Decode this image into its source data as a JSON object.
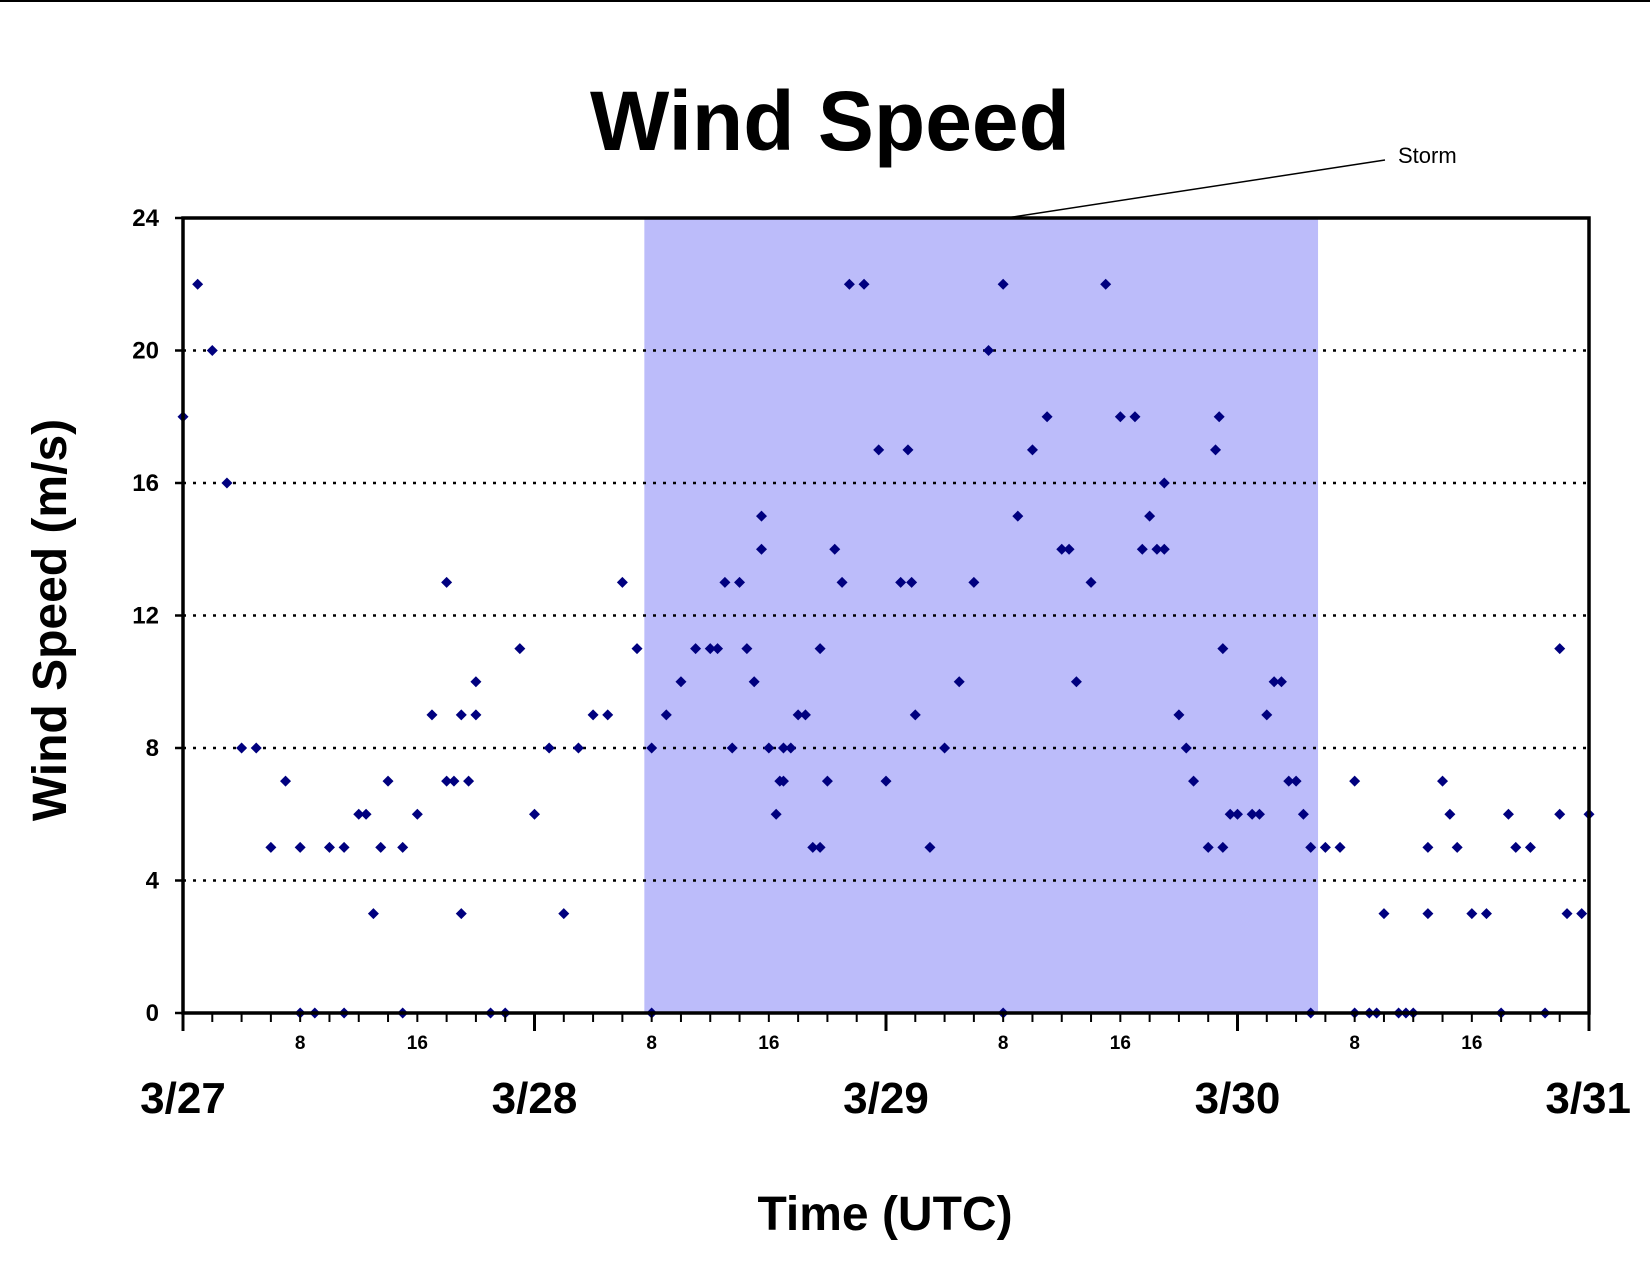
{
  "chart_data": {
    "type": "scatter",
    "title": "Wind Speed",
    "xlabel": "Time (UTC)",
    "ylabel": "Wind Speed (m/s)",
    "xlim": [
      "3/27 00:00",
      "3/31 00:00"
    ],
    "ylim": [
      0,
      24
    ],
    "y_ticks": [
      0,
      4,
      8,
      12,
      16,
      20,
      24
    ],
    "x_day_ticks": [
      "3/27",
      "3/28",
      "3/29",
      "3/30",
      "3/31"
    ],
    "x_hour_ticks": [
      "8",
      "16"
    ],
    "grid": "horizontal dotted",
    "colors": {
      "points": "#00007f",
      "storm_band": "#bcbcfa",
      "grid": "#000000"
    },
    "annotation": {
      "label": "Storm",
      "start": "3/28 07:30",
      "end": "3/30 05:30"
    },
    "series": [
      {
        "points": [
          [
            "3/27 00:00",
            18
          ],
          [
            "3/27 01:00",
            22
          ],
          [
            "3/27 02:00",
            20
          ],
          [
            "3/27 03:00",
            16
          ],
          [
            "3/27 04:00",
            8
          ],
          [
            "3/27 05:00",
            8
          ],
          [
            "3/27 06:00",
            5
          ],
          [
            "3/27 07:00",
            7
          ],
          [
            "3/27 08:00",
            5
          ],
          [
            "3/27 08:00",
            0
          ],
          [
            "3/27 09:00",
            0
          ],
          [
            "3/27 10:00",
            5
          ],
          [
            "3/27 11:00",
            5
          ],
          [
            "3/27 11:00",
            0
          ],
          [
            "3/27 12:00",
            6
          ],
          [
            "3/27 12:30",
            6
          ],
          [
            "3/27 13:00",
            3
          ],
          [
            "3/27 13:30",
            5
          ],
          [
            "3/27 14:00",
            7
          ],
          [
            "3/27 15:00",
            5
          ],
          [
            "3/27 15:00",
            0
          ],
          [
            "3/27 16:00",
            6
          ],
          [
            "3/27 17:00",
            9
          ],
          [
            "3/27 18:00",
            13
          ],
          [
            "3/27 18:00",
            7
          ],
          [
            "3/27 18:30",
            7
          ],
          [
            "3/27 19:00",
            9
          ],
          [
            "3/27 19:00",
            3
          ],
          [
            "3/27 19:30",
            7
          ],
          [
            "3/27 20:00",
            10
          ],
          [
            "3/27 20:00",
            9
          ],
          [
            "3/27 21:00",
            0
          ],
          [
            "3/27 22:00",
            0
          ],
          [
            "3/27 23:00",
            11
          ],
          [
            "3/28 00:00",
            6
          ],
          [
            "3/28 01:00",
            8
          ],
          [
            "3/28 02:00",
            3
          ],
          [
            "3/28 03:00",
            8
          ],
          [
            "3/28 04:00",
            9
          ],
          [
            "3/28 05:00",
            9
          ],
          [
            "3/28 06:00",
            13
          ],
          [
            "3/28 07:00",
            11
          ],
          [
            "3/28 08:00",
            8
          ],
          [
            "3/28 08:00",
            0
          ],
          [
            "3/28 09:00",
            9
          ],
          [
            "3/28 10:00",
            10
          ],
          [
            "3/28 11:00",
            11
          ],
          [
            "3/28 12:00",
            11
          ],
          [
            "3/28 12:30",
            11
          ],
          [
            "3/28 13:00",
            13
          ],
          [
            "3/28 13:30",
            8
          ],
          [
            "3/28 14:00",
            13
          ],
          [
            "3/28 14:30",
            11
          ],
          [
            "3/28 15:00",
            10
          ],
          [
            "3/28 15:30",
            15
          ],
          [
            "3/28 15:30",
            14
          ],
          [
            "3/28 16:00",
            8
          ],
          [
            "3/28 16:30",
            6
          ],
          [
            "3/28 16:45",
            7
          ],
          [
            "3/28 17:00",
            7
          ],
          [
            "3/28 17:00",
            8
          ],
          [
            "3/28 17:30",
            8
          ],
          [
            "3/28 18:00",
            9
          ],
          [
            "3/28 18:30",
            9
          ],
          [
            "3/28 19:00",
            5
          ],
          [
            "3/28 19:30",
            5
          ],
          [
            "3/28 19:30",
            11
          ],
          [
            "3/28 20:00",
            7
          ],
          [
            "3/28 20:30",
            14
          ],
          [
            "3/28 21:00",
            13
          ],
          [
            "3/28 21:30",
            22
          ],
          [
            "3/28 22:30",
            22
          ],
          [
            "3/28 23:30",
            17
          ],
          [
            "3/29 00:00",
            7
          ],
          [
            "3/29 01:00",
            13
          ],
          [
            "3/29 01:30",
            17
          ],
          [
            "3/29 01:45",
            13
          ],
          [
            "3/29 02:00",
            9
          ],
          [
            "3/29 03:00",
            5
          ],
          [
            "3/29 04:00",
            8
          ],
          [
            "3/29 05:00",
            10
          ],
          [
            "3/29 06:00",
            13
          ],
          [
            "3/29 07:00",
            20
          ],
          [
            "3/29 08:00",
            22
          ],
          [
            "3/29 08:00",
            0
          ],
          [
            "3/29 09:00",
            15
          ],
          [
            "3/29 10:00",
            17
          ],
          [
            "3/29 11:00",
            18
          ],
          [
            "3/29 12:00",
            14
          ],
          [
            "3/29 12:30",
            14
          ],
          [
            "3/29 13:00",
            10
          ],
          [
            "3/29 14:00",
            13
          ],
          [
            "3/29 15:00",
            22
          ],
          [
            "3/29 16:00",
            18
          ],
          [
            "3/29 17:00",
            18
          ],
          [
            "3/29 17:30",
            14
          ],
          [
            "3/29 18:00",
            15
          ],
          [
            "3/29 18:30",
            14
          ],
          [
            "3/29 19:00",
            16
          ],
          [
            "3/29 19:00",
            14
          ],
          [
            "3/29 20:00",
            9
          ],
          [
            "3/29 20:30",
            8
          ],
          [
            "3/29 21:00",
            7
          ],
          [
            "3/29 22:00",
            5
          ],
          [
            "3/29 22:30",
            17
          ],
          [
            "3/29 22:45",
            18
          ],
          [
            "3/29 23:00",
            11
          ],
          [
            "3/29 23:00",
            5
          ],
          [
            "3/29 23:30",
            6
          ],
          [
            "3/30 00:00",
            6
          ],
          [
            "3/30 01:00",
            6
          ],
          [
            "3/30 01:30",
            6
          ],
          [
            "3/30 02:00",
            9
          ],
          [
            "3/30 02:30",
            10
          ],
          [
            "3/30 03:00",
            10
          ],
          [
            "3/30 03:30",
            7
          ],
          [
            "3/30 04:00",
            7
          ],
          [
            "3/30 04:30",
            6
          ],
          [
            "3/30 05:00",
            5
          ],
          [
            "3/30 05:00",
            0
          ],
          [
            "3/30 06:00",
            5
          ],
          [
            "3/30 07:00",
            5
          ],
          [
            "3/30 08:00",
            7
          ],
          [
            "3/30 08:00",
            0
          ],
          [
            "3/30 09:00",
            0
          ],
          [
            "3/30 09:30",
            0
          ],
          [
            "3/30 10:00",
            3
          ],
          [
            "3/30 11:00",
            0
          ],
          [
            "3/30 11:30",
            0
          ],
          [
            "3/30 12:00",
            0
          ],
          [
            "3/30 13:00",
            3
          ],
          [
            "3/30 13:00",
            5
          ],
          [
            "3/30 14:00",
            7
          ],
          [
            "3/30 14:30",
            6
          ],
          [
            "3/30 15:00",
            5
          ],
          [
            "3/30 16:00",
            3
          ],
          [
            "3/30 17:00",
            3
          ],
          [
            "3/30 18:00",
            0
          ],
          [
            "3/30 18:30",
            6
          ],
          [
            "3/30 19:00",
            5
          ],
          [
            "3/30 20:00",
            5
          ],
          [
            "3/30 21:00",
            0
          ],
          [
            "3/30 22:00",
            11
          ],
          [
            "3/30 22:00",
            6
          ],
          [
            "3/30 22:30",
            3
          ],
          [
            "3/30 23:30",
            3
          ],
          [
            "3/31 00:00",
            6
          ]
        ]
      }
    ]
  }
}
